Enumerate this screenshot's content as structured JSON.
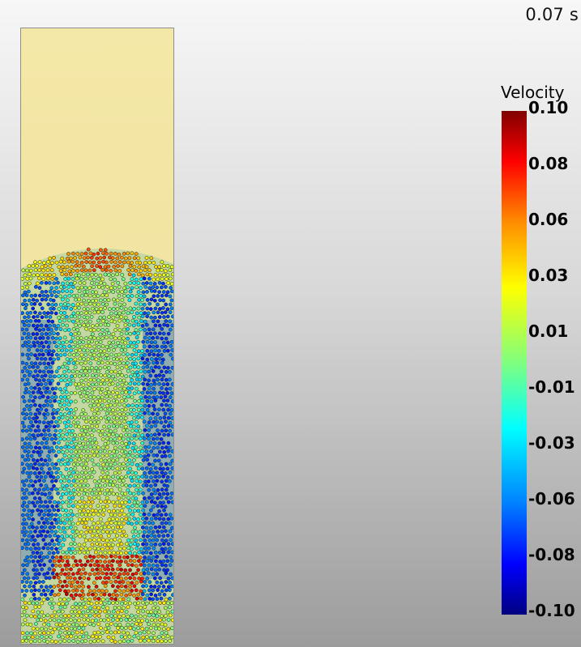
{
  "time_label": "0.07 s",
  "colorbar": {
    "title": "Velocity",
    "range": [
      -0.1,
      0.1
    ],
    "ticks": [
      "0.10",
      "0.08",
      "0.06",
      "0.03",
      "0.01",
      "-0.01",
      "-0.03",
      "-0.06",
      "-0.08",
      "-0.10"
    ],
    "colors": [
      "#800000",
      "#ff0000",
      "#ff8c00",
      "#ffff00",
      "#7fff7f",
      "#00ffff",
      "#0080ff",
      "#0000ff",
      "#000080"
    ]
  },
  "colors": {
    "fluid": "#f1e3a1",
    "particle_edge": "#111111"
  }
}
